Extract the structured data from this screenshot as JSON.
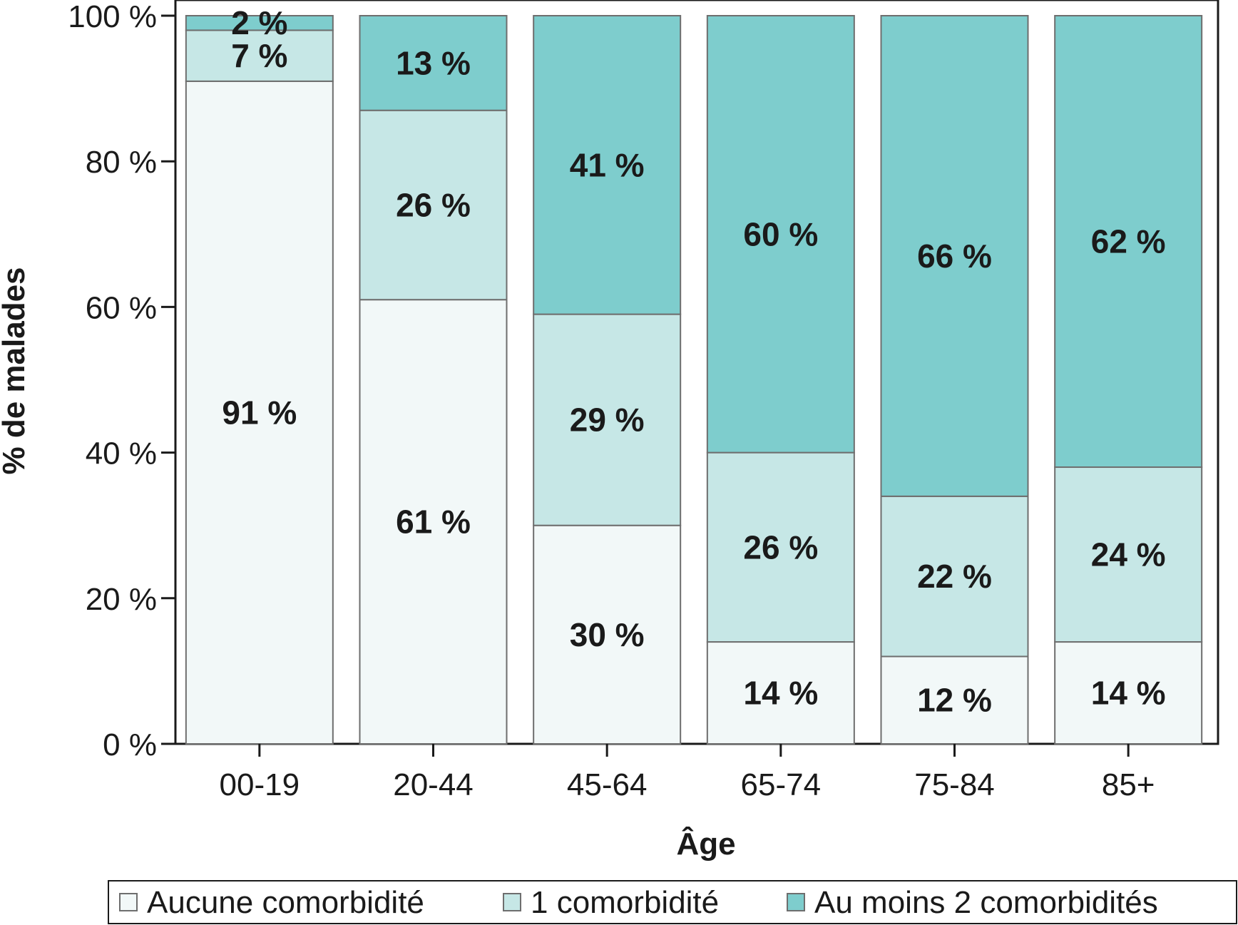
{
  "chart_data": {
    "type": "bar",
    "stacked": true,
    "xlabel": "Âge",
    "ylabel": "% de malades",
    "categories": [
      "00-19",
      "20-44",
      "45-64",
      "65-74",
      "75-84",
      "85+"
    ],
    "ylim": [
      0,
      100
    ],
    "yticks": [
      0,
      20,
      40,
      60,
      80,
      100
    ],
    "ytick_labels": [
      "0 %",
      "20 %",
      "40 %",
      "60 %",
      "80 %",
      "100 %"
    ],
    "series": [
      {
        "name": "Aucune comorbidité",
        "color": "#f2f8f8",
        "values": [
          91,
          61,
          30,
          14,
          12,
          14
        ],
        "labels": [
          "91 %",
          "61 %",
          "30 %",
          "14 %",
          "12 %",
          "14 %"
        ]
      },
      {
        "name": "1 comorbidité",
        "color": "#c6e7e6",
        "values": [
          7,
          26,
          29,
          26,
          22,
          24
        ],
        "labels": [
          "7 %",
          "26 %",
          "29 %",
          "26 %",
          "22 %",
          "24 %"
        ]
      },
      {
        "name": "Au moins 2 comorbidités",
        "color": "#7ecdcd",
        "values": [
          2,
          13,
          41,
          60,
          66,
          62
        ],
        "labels": [
          "2 %",
          "13 %",
          "41 %",
          "60 %",
          "66 %",
          "62 %"
        ]
      }
    ],
    "grid": false,
    "legend_position": "bottom"
  },
  "colors": {
    "axis": "#1a1a1a",
    "bar_border": "#6e6e6e"
  }
}
